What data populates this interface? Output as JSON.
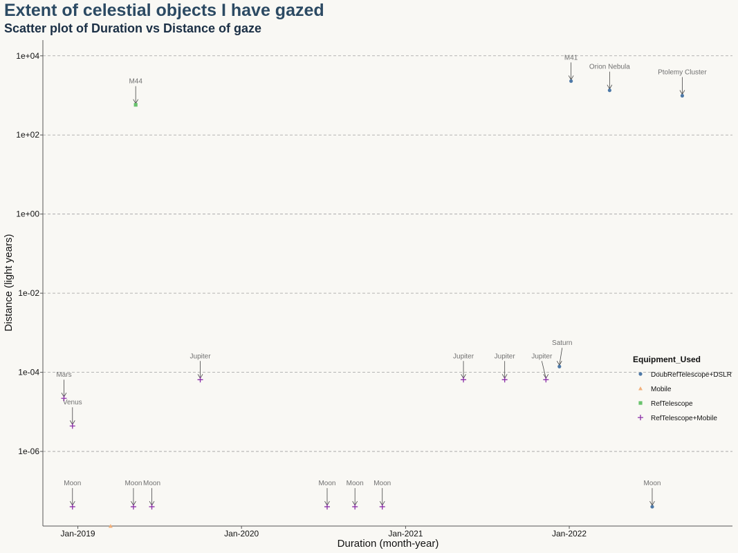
{
  "title": "Extent of celestial objects I have gazed",
  "subtitle": "Scatter plot of Duration vs Distance of gaze",
  "chart_data": {
    "type": "scatter",
    "title": "Extent of celestial objects I have gazed",
    "subtitle": "Scatter plot of Duration vs Distance of gaze",
    "xlabel": "Duration (month-year)",
    "ylabel": "Distance (light years)",
    "x_ticks": [
      "Jan-2019",
      "Jan-2020",
      "Jan-2021",
      "Jan-2022"
    ],
    "y_ticks": [
      "1e+04",
      "1e+02",
      "1e+00",
      "1e-02",
      "1e-04",
      "1e-06"
    ],
    "y_scale": "log10",
    "xlim": [
      "2018-10-15",
      "2022-12-31"
    ],
    "ylim": [
      1.3e-08,
      25000.0
    ],
    "grid": "horizontal dashed",
    "legend": {
      "title": "Equipment_Used",
      "position": "right",
      "entries": [
        {
          "name": "DoubRefTelescope+DSLR",
          "marker": "circle",
          "color": "#4e79a7"
        },
        {
          "name": "Mobile",
          "marker": "triangle",
          "color": "#f3b07a"
        },
        {
          "name": "RefTelescope",
          "marker": "square",
          "color": "#69c36d"
        },
        {
          "name": "RefTelescope+Mobile",
          "marker": "plus",
          "color": "#8a2ea8"
        }
      ]
    },
    "points": [
      {
        "date": "2018-12-01",
        "distance": 2.2e-05,
        "label": "Mars",
        "equipment": "RefTelescope+Mobile"
      },
      {
        "date": "2018-12-20",
        "distance": 4.4e-06,
        "label": "Venus",
        "equipment": "RefTelescope+Mobile"
      },
      {
        "date": "2018-12-20",
        "distance": 4e-08,
        "label": "Moon",
        "equipment": "RefTelescope+Mobile"
      },
      {
        "date": "2019-03-15",
        "distance": 1.3e-08,
        "label": "",
        "equipment": "Mobile"
      },
      {
        "date": "2019-05-05",
        "distance": 4e-08,
        "label": "Moon",
        "equipment": "RefTelescope+Mobile"
      },
      {
        "date": "2019-05-10",
        "distance": 577,
        "label": "M44",
        "equipment": "RefTelescope"
      },
      {
        "date": "2019-06-15",
        "distance": 4e-08,
        "label": "Moon",
        "equipment": "RefTelescope+Mobile"
      },
      {
        "date": "2019-10-01",
        "distance": 6.5e-05,
        "label": "Jupiter",
        "equipment": "RefTelescope+Mobile"
      },
      {
        "date": "2020-07-10",
        "distance": 4e-08,
        "label": "Moon",
        "equipment": "RefTelescope+Mobile"
      },
      {
        "date": "2020-09-10",
        "distance": 4e-08,
        "label": "Moon",
        "equipment": "RefTelescope+Mobile"
      },
      {
        "date": "2020-11-10",
        "distance": 4e-08,
        "label": "Moon",
        "equipment": "RefTelescope+Mobile"
      },
      {
        "date": "2021-05-10",
        "distance": 6.5e-05,
        "label": "Jupiter",
        "equipment": "RefTelescope+Mobile"
      },
      {
        "date": "2021-08-10",
        "distance": 6.5e-05,
        "label": "Jupiter",
        "equipment": "RefTelescope+Mobile"
      },
      {
        "date": "2021-11-10",
        "distance": 6.5e-05,
        "label": "Jupiter",
        "equipment": "RefTelescope+Mobile"
      },
      {
        "date": "2021-12-10",
        "distance": 0.00014,
        "label": "Saturn",
        "equipment": "DoubRefTelescope+DSLR"
      },
      {
        "date": "2022-01-05",
        "distance": 2300,
        "label": "M41",
        "equipment": "DoubRefTelescope+DSLR"
      },
      {
        "date": "2022-04-01",
        "distance": 1344,
        "label": "Orion Nebula",
        "equipment": "DoubRefTelescope+DSLR"
      },
      {
        "date": "2022-07-05",
        "distance": 4e-08,
        "label": "Moon",
        "equipment": "DoubRefTelescope+DSLR"
      },
      {
        "date": "2022-09-10",
        "distance": 980,
        "label": "Ptolemy Cluster",
        "equipment": "DoubRefTelescope+DSLR"
      }
    ]
  }
}
